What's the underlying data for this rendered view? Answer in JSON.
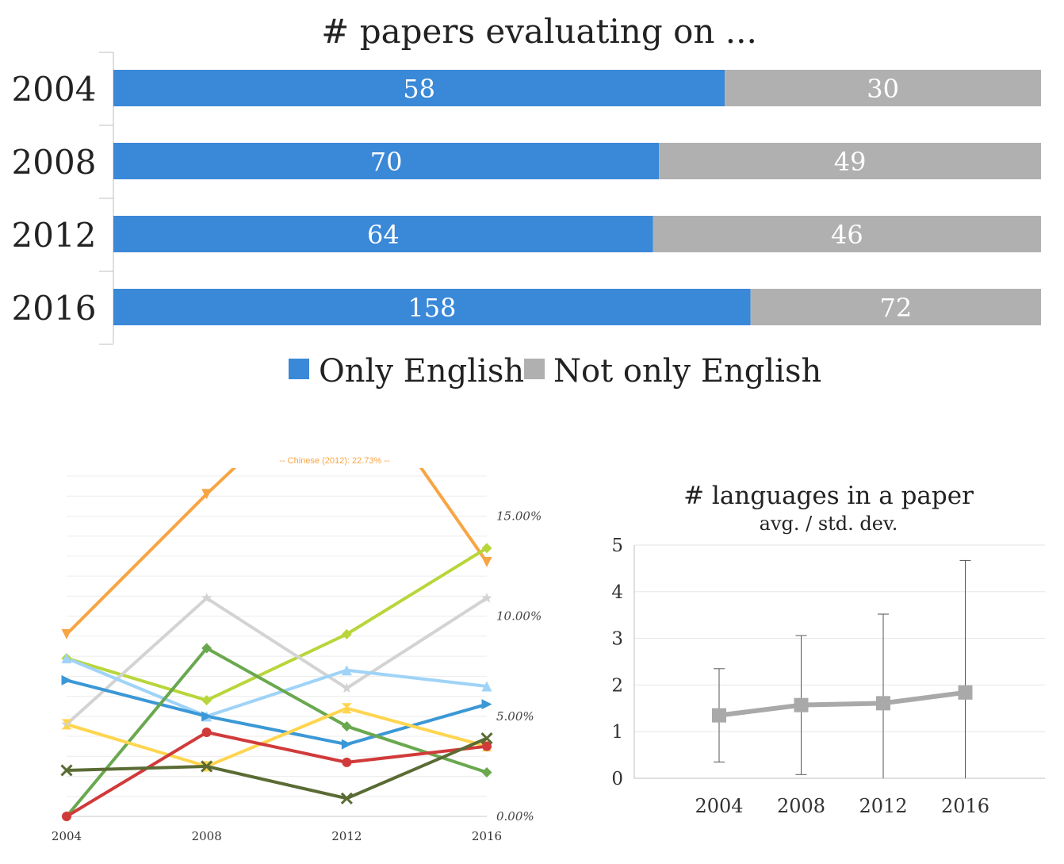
{
  "chart_data": [
    {
      "type": "bar",
      "stacked": true,
      "orientation": "horizontal",
      "title": "# papers evaluating on ...",
      "categories": [
        "2004",
        "2008",
        "2012",
        "2016"
      ],
      "series": [
        {
          "name": "Only English",
          "color": "#3a88d8",
          "values": [
            58,
            70,
            64,
            158
          ]
        },
        {
          "name": "Not only English",
          "color": "#b0b0b0",
          "values": [
            30,
            49,
            46,
            72
          ]
        }
      ],
      "normalized": true,
      "legend": "bottom"
    },
    {
      "type": "line",
      "x": [
        "2004",
        "2008",
        "2012",
        "2016"
      ],
      "ylim": [
        0,
        0.17
      ],
      "yticks": [
        "0.00%",
        "5.00%",
        "10.00%",
        "15.00%"
      ],
      "yaxis_side": "right",
      "grid": true,
      "annotation": "-- Chinese (2012): 22.73% --",
      "series": [
        {
          "color": "#f7a543",
          "marker": "triangle-down",
          "values": [
            0.091,
            0.161,
            0.2273,
            0.127
          ]
        },
        {
          "color": "#b8d63a",
          "marker": "diamond",
          "values": [
            0.079,
            0.058,
            0.091,
            0.134
          ]
        },
        {
          "color": "#d3d3d3",
          "marker": "star",
          "values": [
            0.046,
            0.109,
            0.064,
            0.109
          ]
        },
        {
          "color": "#9fd3f7",
          "marker": "triangle-up",
          "values": [
            0.079,
            0.05,
            0.073,
            0.065
          ]
        },
        {
          "color": "#3b98d6",
          "marker": "triangle-right",
          "values": [
            0.068,
            0.05,
            0.036,
            0.056
          ]
        },
        {
          "color": "#6aa84f",
          "marker": "diamond",
          "values": [
            0.0,
            0.084,
            0.045,
            0.022
          ]
        },
        {
          "color": "#ffd54f",
          "marker": "bowtie",
          "values": [
            0.046,
            0.025,
            0.054,
            0.035
          ]
        },
        {
          "color": "#d13a3a",
          "marker": "circle",
          "values": [
            0.0,
            0.042,
            0.027,
            0.035
          ]
        },
        {
          "color": "#5a6b34",
          "marker": "x",
          "values": [
            0.023,
            0.025,
            0.009,
            0.039
          ]
        }
      ]
    },
    {
      "type": "line",
      "title": "# languages in a paper",
      "subtitle": "avg. / std. dev.",
      "categories": [
        "2004",
        "2008",
        "2012",
        "2016"
      ],
      "values": [
        1.35,
        1.57,
        1.61,
        1.84
      ],
      "error": [
        1.0,
        1.49,
        1.91,
        2.83
      ],
      "ylim": [
        0,
        5
      ],
      "yticks": [
        "0",
        "1",
        "2",
        "3",
        "4",
        "5"
      ],
      "grid": true,
      "color": "#a9a9a9"
    }
  ]
}
